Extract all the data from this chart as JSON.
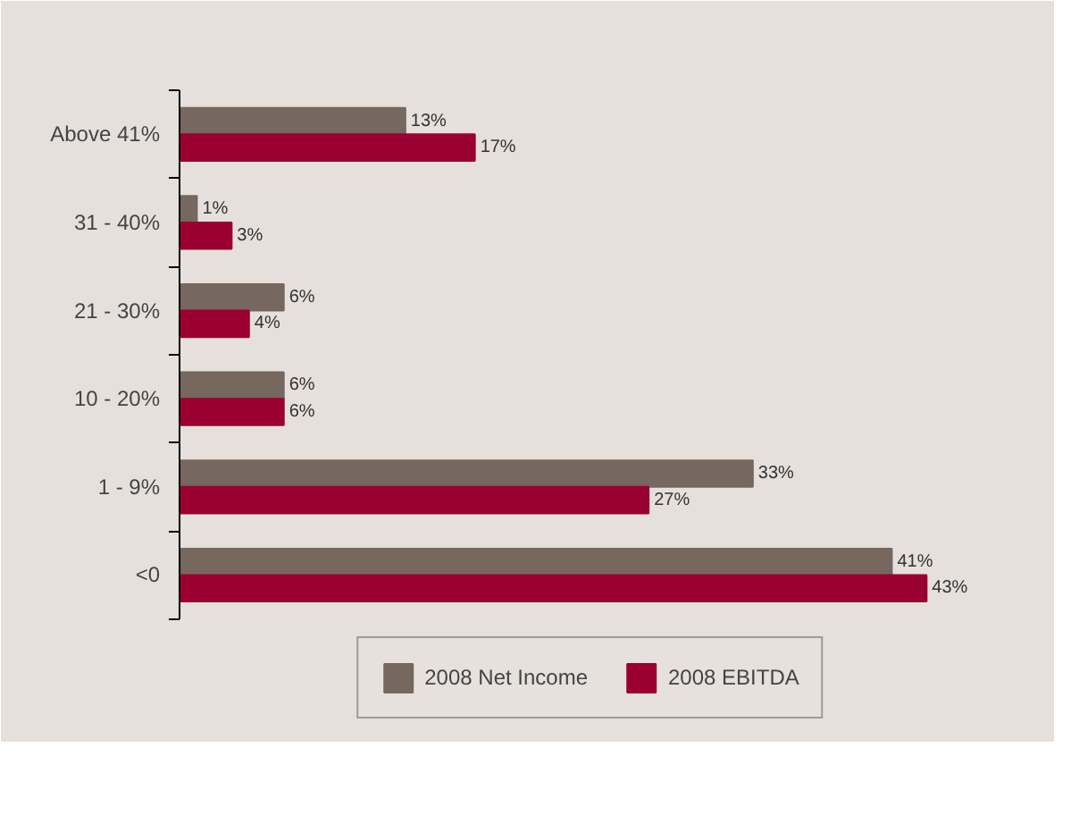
{
  "chart_data": {
    "type": "bar",
    "orientation": "horizontal",
    "categories": [
      "Above 41%",
      "31 - 40%",
      "21 - 30%",
      "10 - 20%",
      "1 - 9%",
      "<0"
    ],
    "series": [
      {
        "name": "2008 Net Income",
        "color": "#76675f",
        "values": [
          13,
          1,
          6,
          6,
          33,
          41
        ],
        "value_labels": [
          "13%",
          "1%",
          "6%",
          "6%",
          "33%",
          "41%"
        ]
      },
      {
        "name": "2008 EBITDA",
        "color": "#9a0032",
        "values": [
          17,
          3,
          4,
          6,
          27,
          43
        ],
        "value_labels": [
          "17%",
          "3%",
          "4%",
          "6%",
          "27%",
          "43%"
        ]
      }
    ],
    "legend": "bottom"
  }
}
